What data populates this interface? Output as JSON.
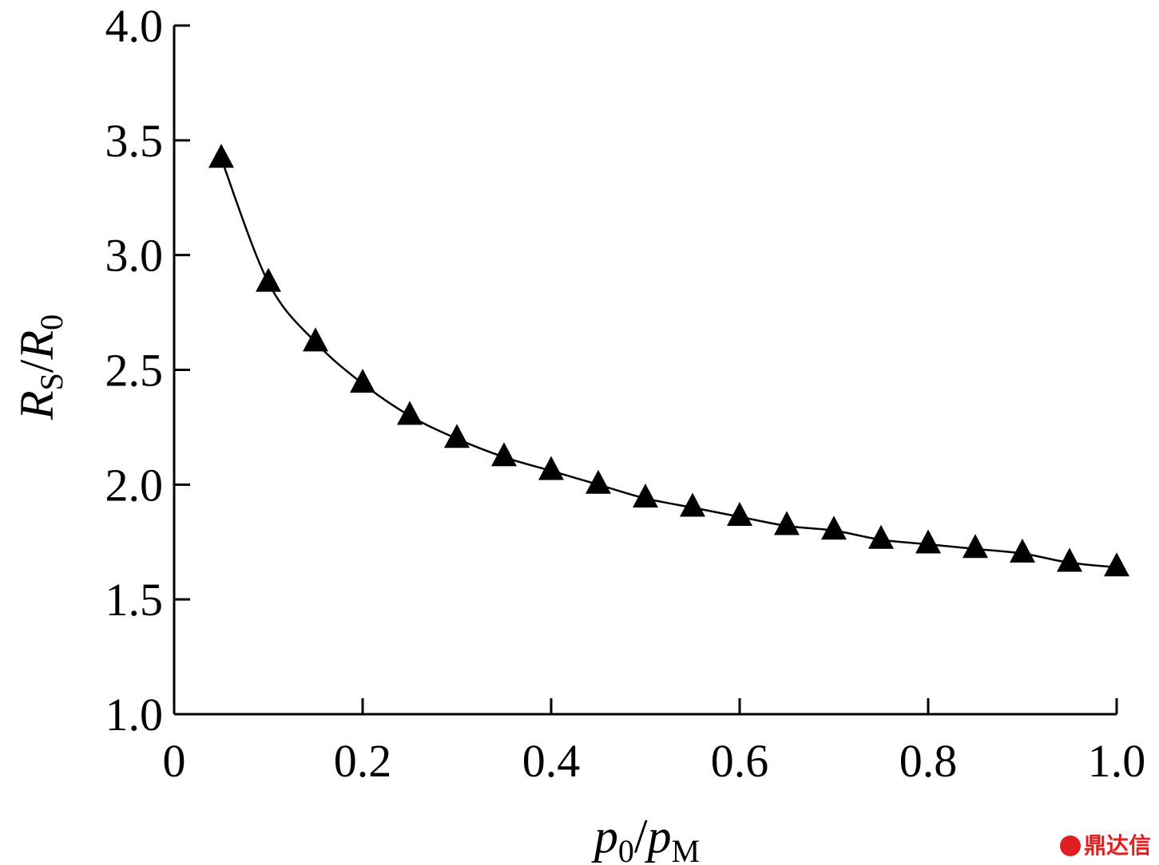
{
  "chart_data": {
    "type": "line",
    "x": [
      0.05,
      0.1,
      0.15,
      0.2,
      0.25,
      0.3,
      0.35,
      0.4,
      0.45,
      0.5,
      0.55,
      0.6,
      0.65,
      0.7,
      0.75,
      0.8,
      0.85,
      0.9,
      0.95,
      1.0
    ],
    "series": [
      {
        "values": [
          3.42,
          2.88,
          2.62,
          2.44,
          2.3,
          2.2,
          2.12,
          2.06,
          2.0,
          1.94,
          1.9,
          1.86,
          1.82,
          1.8,
          1.76,
          1.74,
          1.72,
          1.7,
          1.66,
          1.64
        ],
        "marker": "filled-triangle",
        "color": "#000000"
      }
    ],
    "xlim": [
      0,
      1.0
    ],
    "ylim": [
      1.0,
      4.0
    ],
    "xticks": [
      0,
      0.2,
      0.4,
      0.6,
      0.8,
      1.0
    ],
    "xtick_labels": [
      "0",
      "0.2",
      "0.4",
      "0.6",
      "0.8",
      "1.0"
    ],
    "yticks": [
      1.0,
      1.5,
      2.0,
      2.5,
      3.0,
      3.5,
      4.0
    ],
    "ytick_labels": [
      "1.0",
      "1.5",
      "2.0",
      "2.5",
      "3.0",
      "3.5",
      "4.0"
    ],
    "xlabel": {
      "main1": "p",
      "sub1": "0",
      "sep": "/",
      "main2": "p",
      "sub2": "M"
    },
    "ylabel": {
      "main1": "R",
      "sub1": "S",
      "sep": "/",
      "main2": "R",
      "sub2": "0"
    },
    "grid": false,
    "legend": "none"
  },
  "watermark": {
    "text": "鼎达信",
    "icon": "logo-circle-icon"
  }
}
